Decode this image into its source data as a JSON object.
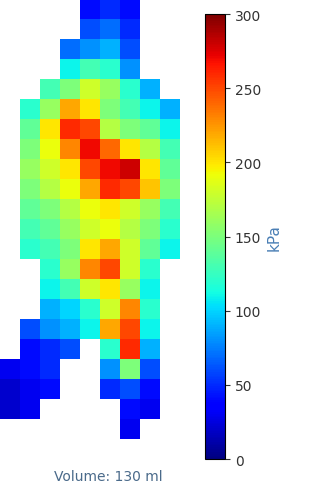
{
  "chart_data": {
    "type": "heatmap",
    "caption": "Volume: 130 ml",
    "tick_labels": false,
    "cells": [
      [
        null,
        null,
        null,
        null,
        40,
        50,
        40,
        null,
        null,
        null
      ],
      [
        null,
        null,
        null,
        null,
        60,
        70,
        50,
        null,
        null,
        null
      ],
      [
        null,
        null,
        null,
        70,
        80,
        90,
        60,
        null,
        null,
        null
      ],
      [
        null,
        null,
        null,
        110,
        130,
        120,
        80,
        null,
        null,
        null
      ],
      [
        null,
        null,
        130,
        150,
        180,
        160,
        120,
        90,
        null,
        null
      ],
      [
        null,
        120,
        160,
        220,
        200,
        150,
        130,
        110,
        90,
        null
      ],
      [
        null,
        140,
        200,
        260,
        250,
        170,
        150,
        140,
        110,
        null
      ],
      [
        null,
        150,
        190,
        230,
        270,
        240,
        200,
        170,
        130,
        null
      ],
      [
        null,
        160,
        180,
        200,
        250,
        270,
        280,
        200,
        140,
        null
      ],
      [
        null,
        150,
        170,
        190,
        220,
        260,
        250,
        210,
        150,
        null
      ],
      [
        null,
        140,
        150,
        170,
        190,
        200,
        180,
        160,
        130,
        null
      ],
      [
        null,
        130,
        140,
        160,
        180,
        190,
        170,
        150,
        120,
        null
      ],
      [
        null,
        120,
        130,
        150,
        200,
        220,
        180,
        140,
        110,
        null
      ],
      [
        null,
        null,
        120,
        160,
        230,
        250,
        180,
        120,
        null,
        null
      ],
      [
        null,
        null,
        110,
        130,
        180,
        200,
        160,
        110,
        null,
        null
      ],
      [
        null,
        null,
        90,
        100,
        120,
        180,
        230,
        120,
        null,
        null
      ],
      [
        null,
        60,
        80,
        90,
        110,
        220,
        250,
        110,
        null,
        null
      ],
      [
        null,
        40,
        50,
        60,
        null,
        120,
        260,
        90,
        null,
        null
      ],
      [
        30,
        40,
        50,
        null,
        null,
        80,
        150,
        60,
        null,
        null
      ],
      [
        20,
        30,
        40,
        null,
        null,
        50,
        60,
        40,
        null,
        null
      ],
      [
        20,
        30,
        null,
        null,
        null,
        null,
        40,
        30,
        null,
        null
      ],
      [
        null,
        null,
        null,
        null,
        null,
        null,
        30,
        null,
        null,
        null
      ]
    ],
    "colorbar_range": [
      0,
      300
    ],
    "colorbar_ticks": [
      0,
      50,
      100,
      150,
      200,
      250,
      300
    ],
    "colorbar_label": "kPa"
  }
}
